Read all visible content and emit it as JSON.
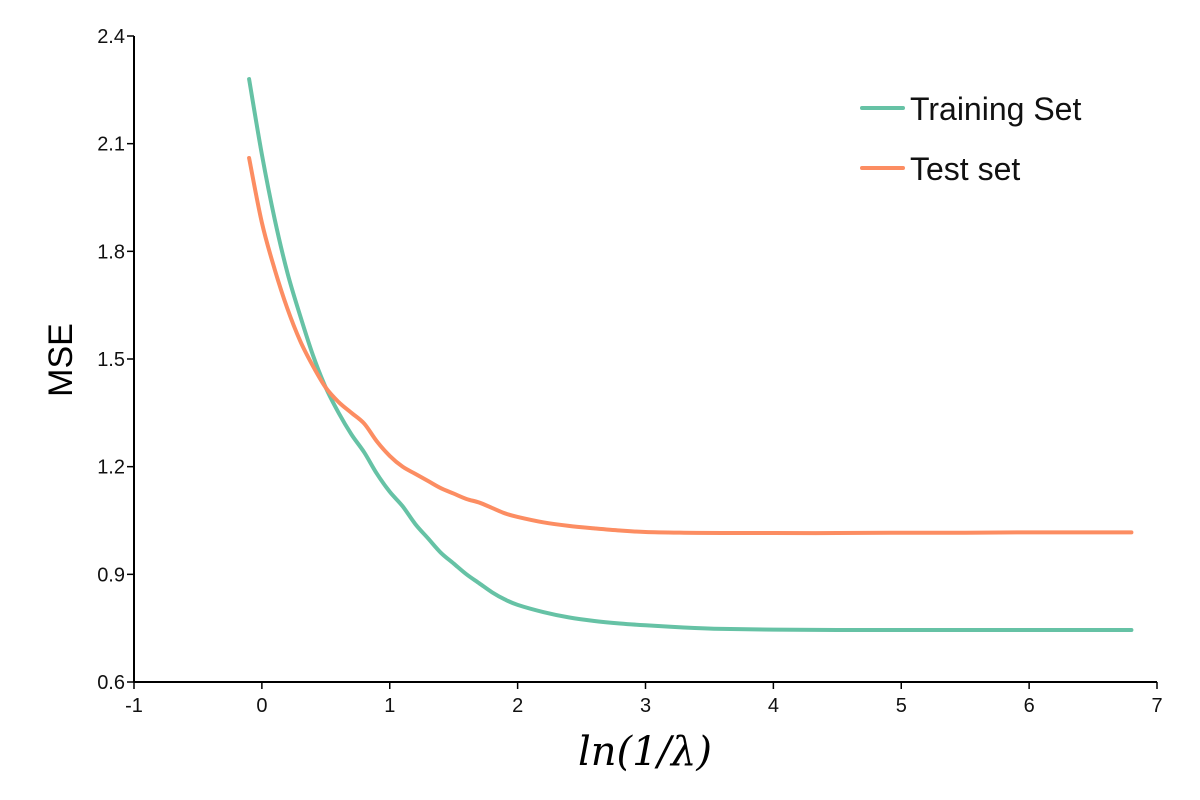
{
  "chart_data": {
    "type": "line",
    "title": "",
    "xlabel": "ln(1/λ)",
    "ylabel": "MSE",
    "xlim": [
      -1,
      7
    ],
    "ylim": [
      0.6,
      2.4
    ],
    "x_ticks": [
      -1,
      0,
      1,
      2,
      3,
      4,
      5,
      6,
      7
    ],
    "x_tick_labels": [
      "-1",
      "0",
      "1",
      "2",
      "3",
      "4",
      "5",
      "6",
      "7"
    ],
    "y_ticks": [
      0.6,
      0.9,
      1.2,
      1.5,
      1.8,
      2.1,
      2.4
    ],
    "y_tick_labels": [
      "0.6",
      "0.9",
      "1.2",
      "1.5",
      "1.8",
      "2.1",
      "2.4"
    ],
    "grid": false,
    "legend_position": "top-right",
    "series": [
      {
        "name": "Training Set",
        "color": "#66c2a5",
        "x": [
          -0.1,
          0.0,
          0.1,
          0.2,
          0.3,
          0.4,
          0.5,
          0.6,
          0.7,
          0.8,
          0.9,
          1.0,
          1.1,
          1.2,
          1.3,
          1.4,
          1.5,
          1.6,
          1.7,
          1.8,
          1.9,
          2.0,
          2.2,
          2.4,
          2.6,
          2.8,
          3.0,
          3.3,
          3.6,
          4.0,
          4.5,
          5.0,
          5.5,
          6.0,
          6.5,
          6.8
        ],
        "values": [
          2.28,
          2.07,
          1.89,
          1.74,
          1.62,
          1.51,
          1.42,
          1.35,
          1.29,
          1.24,
          1.18,
          1.13,
          1.09,
          1.04,
          1.0,
          0.96,
          0.93,
          0.9,
          0.875,
          0.85,
          0.83,
          0.815,
          0.795,
          0.78,
          0.77,
          0.763,
          0.758,
          0.752,
          0.748,
          0.746,
          0.745,
          0.745,
          0.745,
          0.745,
          0.745,
          0.745
        ]
      },
      {
        "name": "Test set",
        "color": "#fc8d62",
        "x": [
          -0.1,
          0.0,
          0.1,
          0.2,
          0.3,
          0.4,
          0.5,
          0.6,
          0.7,
          0.8,
          0.9,
          1.0,
          1.1,
          1.2,
          1.3,
          1.4,
          1.5,
          1.6,
          1.7,
          1.8,
          1.9,
          2.0,
          2.2,
          2.4,
          2.6,
          2.8,
          3.0,
          3.3,
          3.6,
          4.0,
          4.5,
          5.0,
          5.5,
          6.0,
          6.5,
          6.8
        ],
        "values": [
          2.06,
          1.88,
          1.75,
          1.64,
          1.55,
          1.48,
          1.42,
          1.38,
          1.35,
          1.32,
          1.27,
          1.23,
          1.2,
          1.18,
          1.16,
          1.14,
          1.125,
          1.11,
          1.1,
          1.085,
          1.07,
          1.06,
          1.045,
          1.035,
          1.028,
          1.022,
          1.018,
          1.016,
          1.015,
          1.015,
          1.015,
          1.016,
          1.016,
          1.017,
          1.017,
          1.017
        ]
      }
    ]
  }
}
